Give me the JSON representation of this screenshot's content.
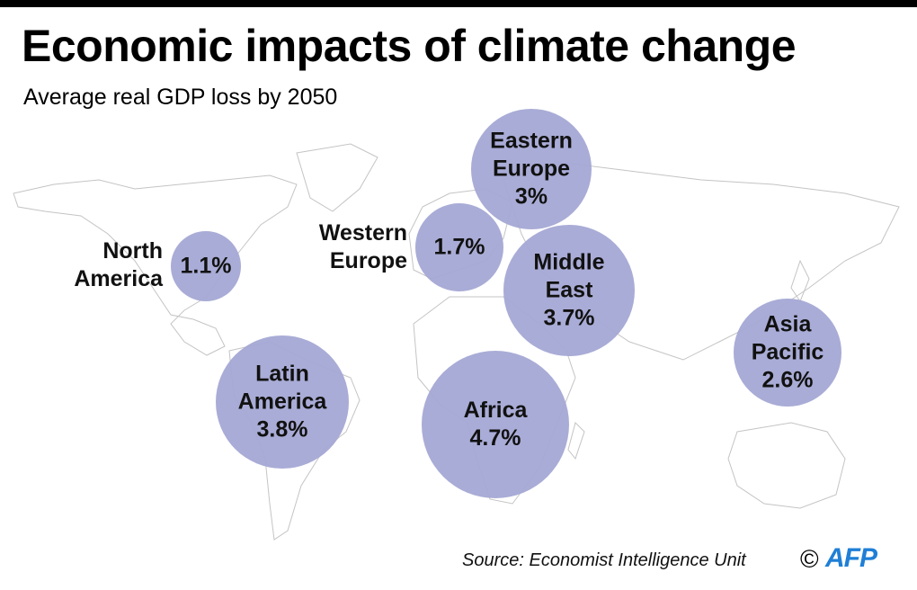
{
  "title": "Economic impacts of climate change",
  "subtitle": "Average real GDP loss by 2050",
  "bubble_color": "#a4a8d4",
  "regions": [
    {
      "name": "North America",
      "name_lines": [
        "North",
        "America"
      ],
      "value_label": "1.1%",
      "gdp_loss_pct": 1.1
    },
    {
      "name": "Western Europe",
      "name_lines": [
        "Western",
        "Europe"
      ],
      "value_label": "1.7%",
      "gdp_loss_pct": 1.7
    },
    {
      "name": "Eastern Europe",
      "name_lines": [
        "Eastern",
        "Europe"
      ],
      "value_label": "3%",
      "gdp_loss_pct": 3.0
    },
    {
      "name": "Middle East",
      "name_lines": [
        "Middle",
        "East"
      ],
      "value_label": "3.7%",
      "gdp_loss_pct": 3.7
    },
    {
      "name": "Asia Pacific",
      "name_lines": [
        "Asia",
        "Pacific"
      ],
      "value_label": "2.6%",
      "gdp_loss_pct": 2.6
    },
    {
      "name": "Latin America",
      "name_lines": [
        "Latin",
        "America"
      ],
      "value_label": "3.8%",
      "gdp_loss_pct": 3.8
    },
    {
      "name": "Africa",
      "name_lines": [
        "Africa"
      ],
      "value_label": "4.7%",
      "gdp_loss_pct": 4.7
    }
  ],
  "source": "Source: Economist Intelligence Unit",
  "copyright_symbol": "©",
  "logo": "AFP",
  "logo_color": "#1f7fd6"
}
